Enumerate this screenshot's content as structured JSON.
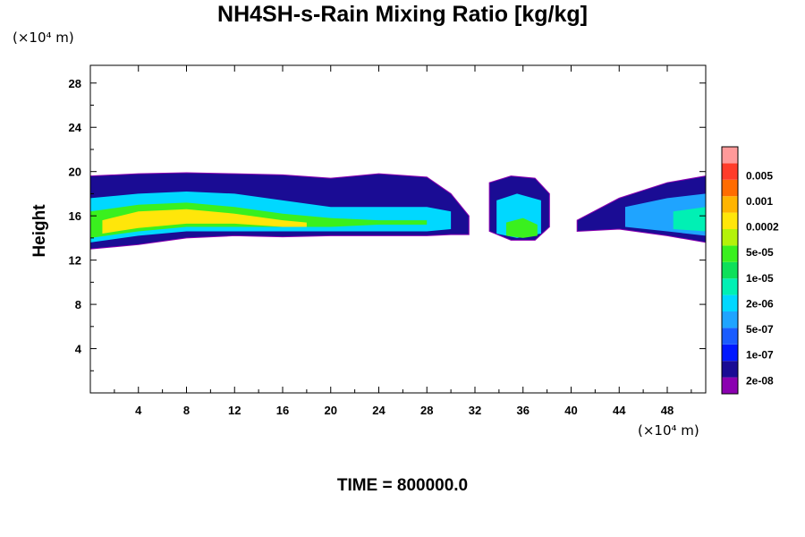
{
  "title": "NH4SH-s-Rain Mixing Ratio [kg/kg]",
  "y_unit": "(×10⁴ m)",
  "x_unit": "(×10⁴ m)",
  "time_label": "TIME = 800000.0",
  "chart_data": {
    "type": "heatmap",
    "title": "NH4SH-s-Rain Mixing Ratio [kg/kg]",
    "ylabel": "Height",
    "xlabel": "",
    "xlim": [
      0,
      51.2
    ],
    "ylim": [
      0,
      29.6
    ],
    "x_ticks": [
      "4",
      "8",
      "12",
      "16",
      "20",
      "24",
      "28",
      "32",
      "36",
      "40",
      "44",
      "48"
    ],
    "y_ticks": [
      "4",
      "8",
      "12",
      "16",
      "20",
      "24",
      "28"
    ],
    "colorbar": {
      "labels": [
        "0.005",
        "0.001",
        "0.0002",
        "5e-05",
        "1e-05",
        "2e-06",
        "5e-07",
        "1e-07",
        "2e-08"
      ],
      "colors": [
        "#8b00b0",
        "#1a0c94",
        "#0018ff",
        "#1a5cff",
        "#1fa4ff",
        "#00d8ff",
        "#00f0b4",
        "#0ee05a",
        "#3af01e",
        "#b4f20a",
        "#ffe60a",
        "#ffb400",
        "#ff6c00",
        "#ff3c2a",
        "#ff9a9a"
      ]
    },
    "bands": [
      {
        "level": 1,
        "top": [
          [
            0,
            19.6
          ],
          [
            4,
            19.8
          ],
          [
            8,
            19.9
          ],
          [
            12,
            19.8
          ],
          [
            16,
            19.7
          ],
          [
            20,
            19.4
          ],
          [
            24,
            19.8
          ],
          [
            28,
            19.5
          ],
          [
            30,
            18.0
          ],
          [
            31.5,
            16.0
          ]
        ],
        "bottom": [
          [
            0,
            13.0
          ],
          [
            4,
            13.4
          ],
          [
            8,
            14.0
          ],
          [
            12,
            14.2
          ],
          [
            16,
            14.1
          ],
          [
            20,
            14.2
          ],
          [
            24,
            14.2
          ],
          [
            28,
            14.2
          ],
          [
            30,
            14.3
          ],
          [
            31.5,
            14.3
          ]
        ]
      },
      {
        "level": 5,
        "top": [
          [
            0,
            17.6
          ],
          [
            4,
            18.0
          ],
          [
            8,
            18.2
          ],
          [
            12,
            18.0
          ],
          [
            16,
            17.4
          ],
          [
            20,
            16.8
          ],
          [
            24,
            16.8
          ],
          [
            28,
            16.8
          ],
          [
            30,
            16.4
          ]
        ],
        "bottom": [
          [
            0,
            13.6
          ],
          [
            4,
            14.2
          ],
          [
            8,
            14.6
          ],
          [
            12,
            14.6
          ],
          [
            16,
            14.6
          ],
          [
            20,
            14.6
          ],
          [
            24,
            14.6
          ],
          [
            28,
            14.6
          ],
          [
            30,
            14.8
          ]
        ]
      },
      {
        "level": 8,
        "top": [
          [
            0,
            16.4
          ],
          [
            4,
            17.0
          ],
          [
            8,
            17.2
          ],
          [
            12,
            16.8
          ],
          [
            16,
            16.2
          ],
          [
            20,
            15.8
          ],
          [
            24,
            15.6
          ],
          [
            28,
            15.6
          ]
        ],
        "bottom": [
          [
            0,
            14.0
          ],
          [
            4,
            14.6
          ],
          [
            8,
            15.0
          ],
          [
            12,
            15.0
          ],
          [
            16,
            15.0
          ],
          [
            20,
            15.0
          ],
          [
            24,
            15.2
          ],
          [
            28,
            15.2
          ]
        ]
      },
      {
        "level": 10,
        "top": [
          [
            1,
            15.6
          ],
          [
            4,
            16.4
          ],
          [
            8,
            16.6
          ],
          [
            12,
            16.2
          ],
          [
            16,
            15.6
          ],
          [
            18,
            15.4
          ]
        ],
        "bottom": [
          [
            1,
            14.4
          ],
          [
            4,
            14.9
          ],
          [
            8,
            15.3
          ],
          [
            12,
            15.3
          ],
          [
            16,
            15.0
          ],
          [
            18,
            15.0
          ]
        ]
      },
      {
        "level": 1,
        "top": [
          [
            33.2,
            19.0
          ],
          [
            35,
            19.6
          ],
          [
            37,
            19.4
          ],
          [
            38.2,
            18.0
          ]
        ],
        "bottom": [
          [
            33.2,
            14.6
          ],
          [
            35,
            13.8
          ],
          [
            37,
            13.8
          ],
          [
            38.2,
            15.0
          ]
        ]
      },
      {
        "level": 5,
        "top": [
          [
            33.8,
            17.4
          ],
          [
            35.5,
            18.0
          ],
          [
            37.5,
            17.4
          ]
        ],
        "bottom": [
          [
            33.8,
            14.4
          ],
          [
            35.5,
            14.0
          ],
          [
            37.5,
            14.4
          ]
        ]
      },
      {
        "level": 8,
        "top": [
          [
            34.6,
            15.4
          ],
          [
            36,
            15.8
          ],
          [
            37.2,
            15.2
          ]
        ],
        "bottom": [
          [
            34.6,
            14.2
          ],
          [
            36,
            14.0
          ],
          [
            37.2,
            14.2
          ]
        ]
      },
      {
        "level": 1,
        "top": [
          [
            40.5,
            15.6
          ],
          [
            44,
            17.6
          ],
          [
            48,
            19.0
          ],
          [
            51.2,
            19.6
          ]
        ],
        "bottom": [
          [
            40.5,
            14.6
          ],
          [
            44,
            14.8
          ],
          [
            48,
            14.2
          ],
          [
            51.2,
            13.6
          ]
        ]
      },
      {
        "level": 4,
        "top": [
          [
            44.5,
            16.8
          ],
          [
            48,
            17.6
          ],
          [
            51.2,
            18.0
          ]
        ],
        "bottom": [
          [
            44.5,
            15.0
          ],
          [
            48,
            14.6
          ],
          [
            51.2,
            14.2
          ]
        ]
      },
      {
        "level": 6,
        "top": [
          [
            48.5,
            16.4
          ],
          [
            51.2,
            16.8
          ]
        ],
        "bottom": [
          [
            48.5,
            14.8
          ],
          [
            51.2,
            14.6
          ]
        ]
      }
    ]
  }
}
